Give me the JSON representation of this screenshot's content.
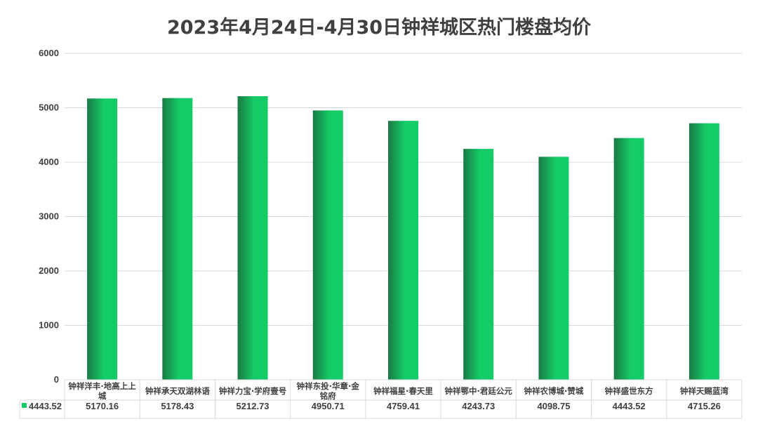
{
  "chart_data": {
    "type": "bar",
    "title": "2023年4月24日-4月30日钟祥城区热门楼盘均价",
    "categories": [
      "钟祥洋丰·地高上上城",
      "钟祥承天双湖林语",
      "钟祥力宝·学府壹号",
      "钟祥东投·华章·金铭府",
      "钟祥福星·春天里",
      "钟祥鄂中·君廷公元",
      "钟祥农博城·赞城",
      "钟祥盛世东方",
      "钟祥天赐蓝湾"
    ],
    "category_lines": [
      [
        "钟祥洋丰·地高上上",
        "城"
      ],
      [
        "钟祥承天双湖林语"
      ],
      [
        "钟祥力宝·学府壹号"
      ],
      [
        "钟祥东投·华章·金",
        "铭府"
      ],
      [
        "钟祥福星·春天里"
      ],
      [
        "钟祥鄂中·君廷公元"
      ],
      [
        "钟祥农博城·赞城"
      ],
      [
        "钟祥盛世东方"
      ],
      [
        "钟祥天赐蓝湾"
      ]
    ],
    "values": [
      5170.16,
      5178.43,
      5212.73,
      4950.71,
      4759.41,
      4243.73,
      4098.75,
      4443.52,
      4715.26
    ],
    "value_labels": [
      "5170.16",
      "5178.43",
      "5212.73",
      "4950.71",
      "4759.41",
      "4243.73",
      "4098.75",
      "4443.52",
      "4715.26"
    ],
    "legend_label": "4443.52",
    "y_ticks": [
      "0",
      "1000",
      "2000",
      "3000",
      "4000",
      "5000",
      "6000"
    ],
    "ylim": [
      0,
      6000
    ],
    "grid": true,
    "data_table": true,
    "colors": {
      "bar_dark": "#1a7a45",
      "bar_light": "#14cc66",
      "grid": "#d9d9d9",
      "text": "#404040"
    }
  }
}
